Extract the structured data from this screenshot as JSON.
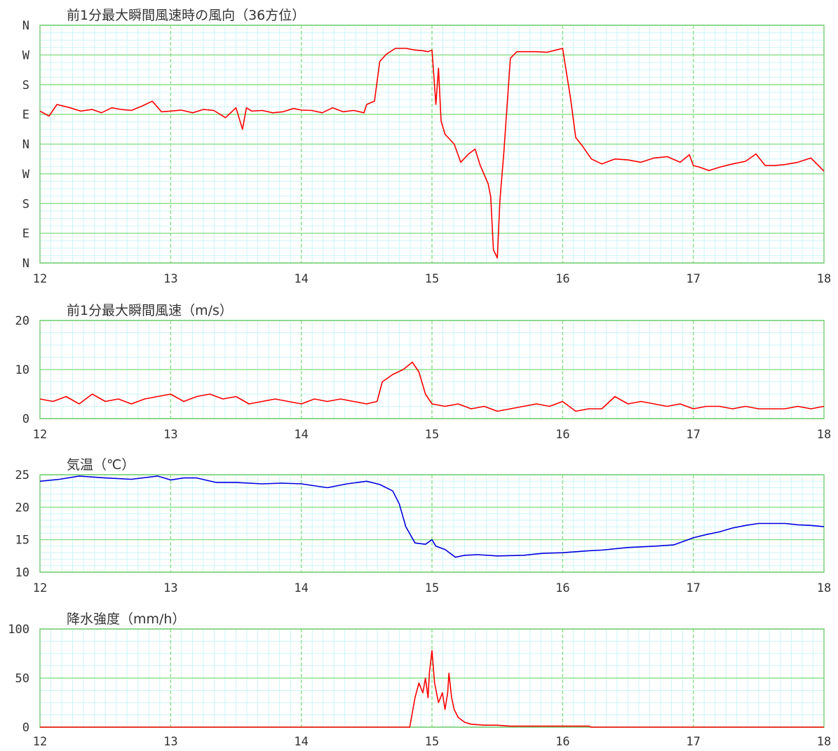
{
  "chart_data": [
    {
      "type": "line",
      "title": "前1分最大瞬間風速時の風向（36方位）",
      "x_ticks": [
        "12",
        "13",
        "14",
        "15",
        "16",
        "17",
        "18"
      ],
      "x_range": [
        12,
        18
      ],
      "y_range": [
        0,
        720
      ],
      "y_ticks": [
        {
          "value": 0,
          "label": "N"
        },
        {
          "value": 90,
          "label": "E"
        },
        {
          "value": 180,
          "label": "S"
        },
        {
          "value": 270,
          "label": "W"
        },
        {
          "value": 360,
          "label": "N"
        },
        {
          "value": 450,
          "label": "E"
        },
        {
          "value": 540,
          "label": "S"
        },
        {
          "value": 630,
          "label": "W"
        },
        {
          "value": 720,
          "label": "N"
        }
      ],
      "unit": "deg (unwrapped)",
      "color": "#ff0000",
      "series": [
        {
          "x": [
            12.0,
            12.07,
            12.13,
            12.23,
            12.31,
            12.4,
            12.47,
            12.55,
            12.62,
            12.7,
            12.78,
            12.86,
            12.93,
            13.0,
            13.08,
            13.17,
            13.25,
            13.33,
            13.42,
            13.5,
            13.55,
            13.58,
            13.62,
            13.7,
            13.78,
            13.86,
            13.94,
            14.0,
            14.08,
            14.16,
            14.24,
            14.32,
            14.4,
            14.48,
            14.5,
            14.56,
            14.6,
            14.65,
            14.72,
            14.8,
            14.87,
            14.93,
            14.97,
            15.0,
            15.03,
            15.05,
            15.07,
            15.1,
            15.17,
            15.22,
            15.28,
            15.33,
            15.37,
            15.41,
            15.43,
            15.45,
            15.47,
            15.5,
            15.52,
            15.55,
            15.6,
            15.65,
            15.72,
            15.8,
            15.88,
            15.95,
            16.0,
            16.06,
            16.1,
            16.12,
            16.15,
            16.22,
            16.3,
            16.4,
            16.5,
            16.6,
            16.7,
            16.8,
            16.9,
            16.97,
            17.0,
            17.05,
            17.12,
            17.2,
            17.3,
            17.4,
            17.48,
            17.55,
            17.62,
            17.7,
            17.8,
            17.9,
            18.0
          ],
          "y": [
            460,
            445,
            480,
            470,
            460,
            465,
            455,
            470,
            465,
            462,
            475,
            490,
            458,
            460,
            463,
            455,
            465,
            462,
            440,
            470,
            405,
            470,
            460,
            462,
            455,
            458,
            468,
            463,
            462,
            455,
            470,
            458,
            462,
            455,
            480,
            490,
            610,
            632,
            650,
            650,
            645,
            643,
            640,
            645,
            480,
            590,
            430,
            390,
            360,
            305,
            330,
            345,
            295,
            258,
            240,
            200,
            40,
            15,
            190,
            335,
            620,
            640,
            640,
            640,
            638,
            645,
            650,
            500,
            380,
            370,
            355,
            315,
            300,
            315,
            312,
            305,
            318,
            322,
            305,
            328,
            295,
            290,
            280,
            290,
            300,
            308,
            330,
            295,
            295,
            298,
            305,
            318,
            278
          ]
        }
      ]
    },
    {
      "type": "line",
      "title": "前1分最大瞬間風速（m/s）",
      "x_ticks": [
        "12",
        "13",
        "14",
        "15",
        "16",
        "17",
        "18"
      ],
      "x_range": [
        12,
        18
      ],
      "y_range": [
        0,
        20
      ],
      "y_ticks": [
        {
          "value": 0,
          "label": "0"
        },
        {
          "value": 10,
          "label": "10"
        },
        {
          "value": 20,
          "label": "20"
        }
      ],
      "color": "#ff0000",
      "series": [
        {
          "x": [
            12.0,
            12.1,
            12.2,
            12.3,
            12.4,
            12.5,
            12.6,
            12.7,
            12.8,
            12.9,
            13.0,
            13.1,
            13.2,
            13.3,
            13.4,
            13.5,
            13.6,
            13.7,
            13.8,
            13.9,
            14.0,
            14.1,
            14.2,
            14.3,
            14.4,
            14.5,
            14.58,
            14.62,
            14.7,
            14.78,
            14.85,
            14.9,
            14.95,
            15.0,
            15.1,
            15.2,
            15.3,
            15.4,
            15.5,
            15.6,
            15.7,
            15.8,
            15.9,
            16.0,
            16.1,
            16.2,
            16.3,
            16.4,
            16.5,
            16.6,
            16.7,
            16.8,
            16.9,
            17.0,
            17.1,
            17.2,
            17.3,
            17.4,
            17.5,
            17.6,
            17.7,
            17.8,
            17.9,
            18.0
          ],
          "y": [
            4.0,
            3.5,
            4.5,
            3.0,
            5.0,
            3.5,
            4.0,
            3.0,
            4.0,
            4.5,
            5.0,
            3.5,
            4.5,
            5.0,
            4.0,
            4.5,
            3.0,
            3.5,
            4.0,
            3.5,
            3.0,
            4.0,
            3.5,
            4.0,
            3.5,
            3.0,
            3.5,
            7.5,
            9.0,
            10.0,
            11.5,
            9.5,
            5.0,
            3.0,
            2.5,
            3.0,
            2.0,
            2.5,
            1.5,
            2.0,
            2.5,
            3.0,
            2.5,
            3.5,
            1.5,
            2.0,
            2.0,
            4.5,
            3.0,
            3.5,
            3.0,
            2.5,
            3.0,
            2.0,
            2.5,
            2.5,
            2.0,
            2.5,
            2.0,
            2.0,
            2.0,
            2.5,
            2.0,
            2.5
          ]
        }
      ]
    },
    {
      "type": "line",
      "title": "気温（℃）",
      "x_ticks": [
        "12",
        "13",
        "14",
        "15",
        "16",
        "17",
        "18"
      ],
      "x_range": [
        12,
        18
      ],
      "y_range": [
        10,
        25
      ],
      "y_ticks": [
        {
          "value": 10,
          "label": "10"
        },
        {
          "value": 15,
          "label": "15"
        },
        {
          "value": 20,
          "label": "20"
        },
        {
          "value": 25,
          "label": "25"
        }
      ],
      "color": "#0000dd",
      "series": [
        {
          "x": [
            12.0,
            12.15,
            12.3,
            12.5,
            12.7,
            12.9,
            13.0,
            13.1,
            13.2,
            13.35,
            13.5,
            13.7,
            13.85,
            14.0,
            14.2,
            14.35,
            14.5,
            14.6,
            14.7,
            14.75,
            14.8,
            14.87,
            14.95,
            15.0,
            15.03,
            15.1,
            15.18,
            15.25,
            15.35,
            15.5,
            15.7,
            15.85,
            16.0,
            16.2,
            16.3,
            16.5,
            16.7,
            16.85,
            17.0,
            17.1,
            17.2,
            17.3,
            17.4,
            17.5,
            17.6,
            17.7,
            17.8,
            17.9,
            18.0
          ],
          "y": [
            24.0,
            24.3,
            24.8,
            24.5,
            24.3,
            24.8,
            24.2,
            24.5,
            24.5,
            23.8,
            23.8,
            23.6,
            23.7,
            23.6,
            23.0,
            23.6,
            24.0,
            23.5,
            22.5,
            20.5,
            17.0,
            14.5,
            14.3,
            15.0,
            14.0,
            13.5,
            12.3,
            12.6,
            12.7,
            12.5,
            12.6,
            12.9,
            13.0,
            13.3,
            13.4,
            13.8,
            14.0,
            14.2,
            15.3,
            15.8,
            16.2,
            16.8,
            17.2,
            17.5,
            17.5,
            17.5,
            17.3,
            17.2,
            17.0
          ]
        }
      ]
    },
    {
      "type": "line",
      "title": "降水強度（mm/h）",
      "x_ticks": [
        "12",
        "13",
        "14",
        "15",
        "16",
        "17",
        "18"
      ],
      "x_range": [
        12,
        18
      ],
      "y_range": [
        0,
        100
      ],
      "y_ticks": [
        {
          "value": 0,
          "label": "0"
        },
        {
          "value": 50,
          "label": "50"
        },
        {
          "value": 100,
          "label": "100"
        }
      ],
      "color": "#ff0000",
      "series": [
        {
          "x": [
            12.0,
            14.83,
            14.87,
            14.9,
            14.93,
            14.95,
            14.97,
            14.98,
            15.0,
            15.02,
            15.05,
            15.08,
            15.1,
            15.12,
            15.13,
            15.15,
            15.17,
            15.2,
            15.25,
            15.3,
            15.4,
            15.5,
            15.6,
            15.8,
            16.0,
            16.2,
            16.22,
            16.5,
            17.0,
            17.5,
            18.0
          ],
          "y": [
            0,
            0,
            30,
            45,
            35,
            50,
            30,
            55,
            78,
            45,
            25,
            35,
            18,
            35,
            55,
            30,
            18,
            10,
            5,
            3,
            2,
            2,
            1,
            1,
            1,
            1,
            0,
            0,
            0,
            0,
            0
          ]
        }
      ]
    }
  ]
}
